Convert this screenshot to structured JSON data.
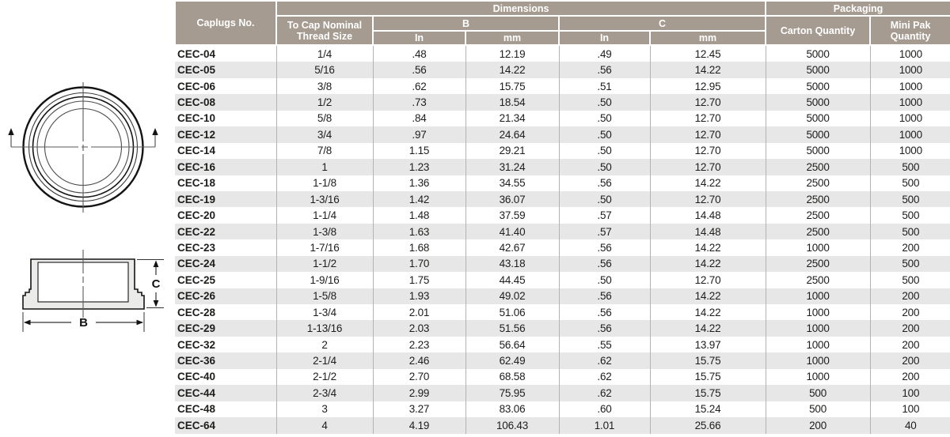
{
  "colors": {
    "header_bg": "#a59b91",
    "header_text": "#ffffff",
    "row_stripe": "#e7e7e7",
    "column_divider": "#b6b1ab",
    "body_text": "#1d1d1b",
    "diagram_fill": "#ebebe9",
    "diagram_line": "#141414"
  },
  "diagram": {
    "top_view_name": "cap-top-view-drawing",
    "side_view_name": "cap-cross-section-drawing",
    "b_label": "B",
    "c_label": "C"
  },
  "table": {
    "header": {
      "caplugs_no": "Caplugs No.",
      "dimensions": "Dimensions",
      "packaging": "Packaging",
      "thread_size": "To Cap Nominal Thread Size",
      "b": "B",
      "c": "C",
      "in_label": "In",
      "mm_label": "mm",
      "carton_qty": "Carton Quantity",
      "mini_pak_qty": "Mini Pak Quantity"
    },
    "columns": [
      "Caplugs No.",
      "To Cap Nominal Thread Size",
      "B In",
      "B mm",
      "C In",
      "C mm",
      "Carton Quantity",
      "Mini Pak Quantity"
    ],
    "rows": [
      [
        "CEC-04",
        "1/4",
        ".48",
        "12.19",
        ".49",
        "12.45",
        "5000",
        "1000"
      ],
      [
        "CEC-05",
        "5/16",
        ".56",
        "14.22",
        ".56",
        "14.22",
        "5000",
        "1000"
      ],
      [
        "CEC-06",
        "3/8",
        ".62",
        "15.75",
        ".51",
        "12.95",
        "5000",
        "1000"
      ],
      [
        "CEC-08",
        "1/2",
        ".73",
        "18.54",
        ".50",
        "12.70",
        "5000",
        "1000"
      ],
      [
        "CEC-10",
        "5/8",
        ".84",
        "21.34",
        ".50",
        "12.70",
        "5000",
        "1000"
      ],
      [
        "CEC-12",
        "3/4",
        ".97",
        "24.64",
        ".50",
        "12.70",
        "5000",
        "1000"
      ],
      [
        "CEC-14",
        "7/8",
        "1.15",
        "29.21",
        ".50",
        "12.70",
        "5000",
        "1000"
      ],
      [
        "CEC-16",
        "1",
        "1.23",
        "31.24",
        ".50",
        "12.70",
        "2500",
        "500"
      ],
      [
        "CEC-18",
        "1-1/8",
        "1.36",
        "34.55",
        ".56",
        "14.22",
        "2500",
        "500"
      ],
      [
        "CEC-19",
        "1-3/16",
        "1.42",
        "36.07",
        ".50",
        "12.70",
        "2500",
        "500"
      ],
      [
        "CEC-20",
        "1-1/4",
        "1.48",
        "37.59",
        ".57",
        "14.48",
        "2500",
        "500"
      ],
      [
        "CEC-22",
        "1-3/8",
        "1.63",
        "41.40",
        ".57",
        "14.48",
        "2500",
        "500"
      ],
      [
        "CEC-23",
        "1-7/16",
        "1.68",
        "42.67",
        ".56",
        "14.22",
        "1000",
        "200"
      ],
      [
        "CEC-24",
        "1-1/2",
        "1.70",
        "43.18",
        ".56",
        "14.22",
        "2500",
        "500"
      ],
      [
        "CEC-25",
        "1-9/16",
        "1.75",
        "44.45",
        ".50",
        "12.70",
        "2500",
        "500"
      ],
      [
        "CEC-26",
        "1-5/8",
        "1.93",
        "49.02",
        ".56",
        "14.22",
        "1000",
        "200"
      ],
      [
        "CEC-28",
        "1-3/4",
        "2.01",
        "51.06",
        ".56",
        "14.22",
        "1000",
        "200"
      ],
      [
        "CEC-29",
        "1-13/16",
        "2.03",
        "51.56",
        ".56",
        "14.22",
        "1000",
        "200"
      ],
      [
        "CEC-32",
        "2",
        "2.23",
        "56.64",
        ".55",
        "13.97",
        "1000",
        "200"
      ],
      [
        "CEC-36",
        "2-1/4",
        "2.46",
        "62.49",
        ".62",
        "15.75",
        "1000",
        "200"
      ],
      [
        "CEC-40",
        "2-1/2",
        "2.70",
        "68.58",
        ".62",
        "15.75",
        "1000",
        "200"
      ],
      [
        "CEC-44",
        "2-3/4",
        "2.99",
        "75.95",
        ".62",
        "15.75",
        "500",
        "100"
      ],
      [
        "CEC-48",
        "3",
        "3.27",
        "83.06",
        ".60",
        "15.24",
        "500",
        "100"
      ],
      [
        "CEC-64",
        "4",
        "4.19",
        "106.43",
        "1.01",
        "25.66",
        "200",
        "40"
      ]
    ]
  }
}
